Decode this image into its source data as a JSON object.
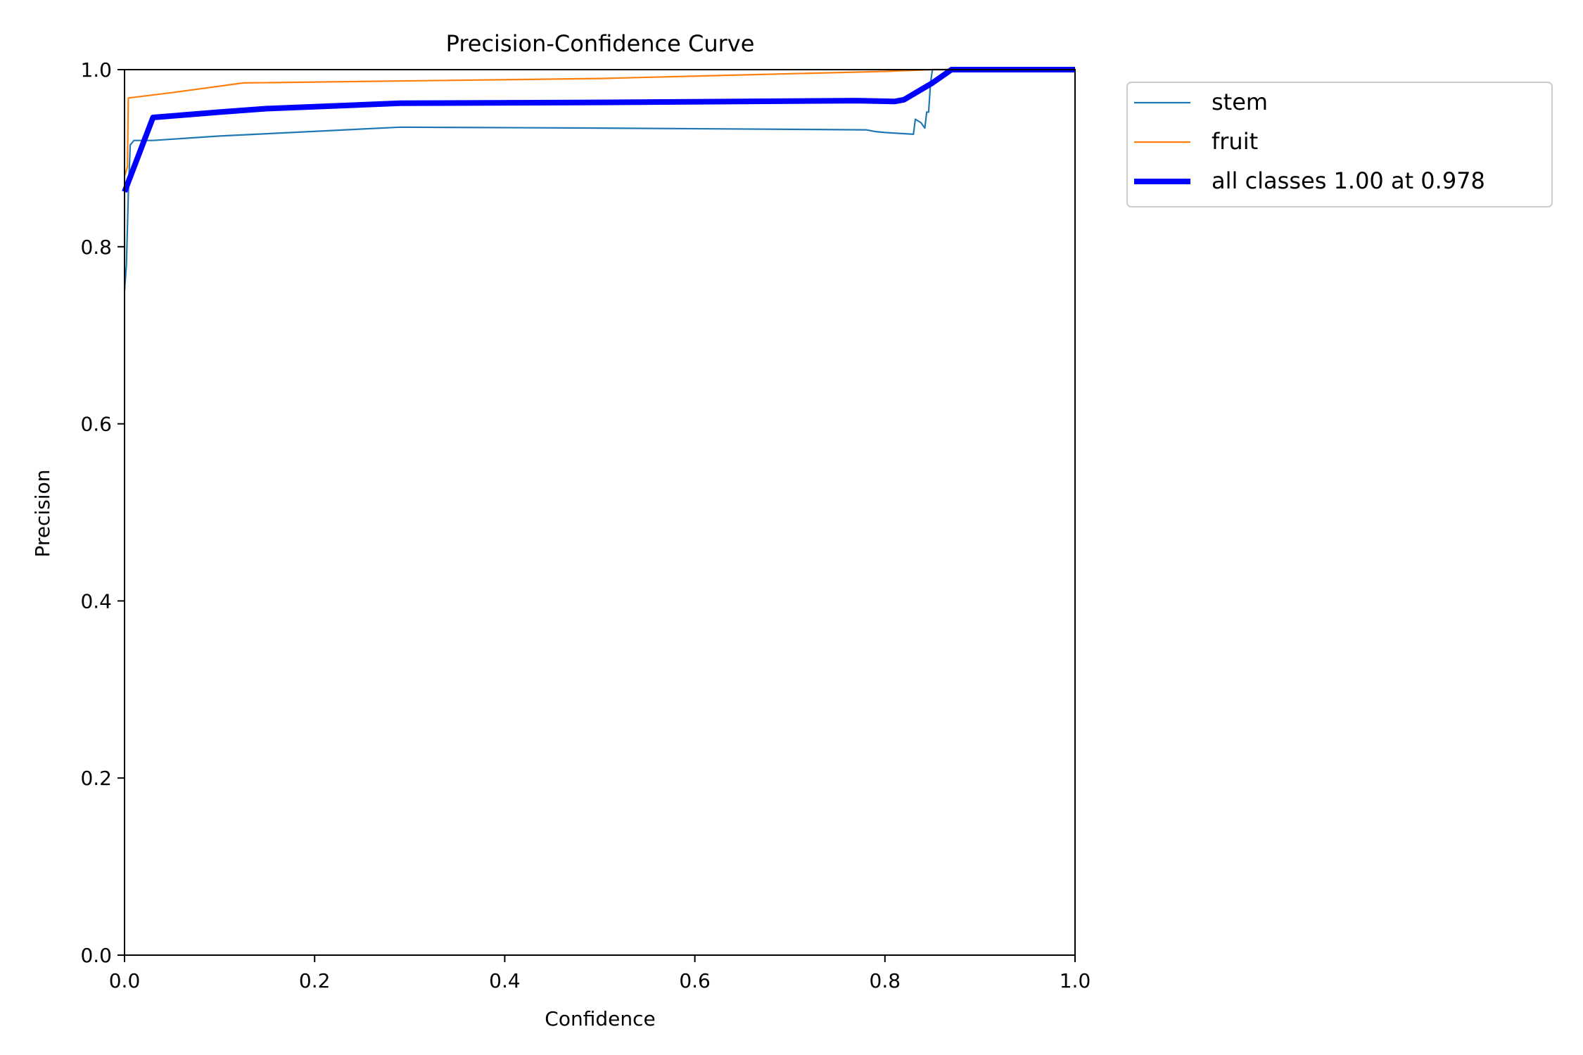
{
  "chart_data": {
    "type": "line",
    "title": "Precision-Confidence Curve",
    "xlabel": "Confidence",
    "ylabel": "Precision",
    "xlim": [
      0,
      1
    ],
    "ylim": [
      0,
      1
    ],
    "xticks": [
      "0.0",
      "0.2",
      "0.4",
      "0.6",
      "0.8",
      "1.0"
    ],
    "yticks": [
      "0.0",
      "0.2",
      "0.4",
      "0.6",
      "0.8",
      "1.0"
    ],
    "grid": false,
    "legend_position": "outside upper right",
    "series": [
      {
        "name": "stem",
        "color": "#1f77b4",
        "line": "thin",
        "points": [
          [
            0.0,
            0.75
          ],
          [
            0.002,
            0.78
          ],
          [
            0.004,
            0.86
          ],
          [
            0.006,
            0.915
          ],
          [
            0.01,
            0.92
          ],
          [
            0.03,
            0.92
          ],
          [
            0.1,
            0.925
          ],
          [
            0.29,
            0.935
          ],
          [
            0.5,
            0.934
          ],
          [
            0.78,
            0.932
          ],
          [
            0.79,
            0.93
          ],
          [
            0.8,
            0.929
          ],
          [
            0.83,
            0.927
          ],
          [
            0.832,
            0.944
          ],
          [
            0.838,
            0.94
          ],
          [
            0.842,
            0.934
          ],
          [
            0.844,
            0.952
          ],
          [
            0.846,
            0.952
          ],
          [
            0.848,
            0.985
          ],
          [
            0.85,
            1.0
          ],
          [
            1.0,
            1.0
          ]
        ]
      },
      {
        "name": "fruit",
        "color": "#ff7f0e",
        "line": "thin",
        "points": [
          [
            0.0,
            0.88
          ],
          [
            0.003,
            0.89
          ],
          [
            0.004,
            0.968
          ],
          [
            0.05,
            0.974
          ],
          [
            0.125,
            0.985
          ],
          [
            0.5,
            0.99
          ],
          [
            0.8,
            0.998
          ],
          [
            0.85,
            1.0
          ],
          [
            1.0,
            1.0
          ]
        ]
      },
      {
        "name": "all classes 1.00 at 0.978",
        "color": "#0000ff",
        "line": "thick",
        "points": [
          [
            0.0,
            0.862
          ],
          [
            0.01,
            0.89
          ],
          [
            0.03,
            0.946
          ],
          [
            0.1,
            0.952
          ],
          [
            0.15,
            0.956
          ],
          [
            0.29,
            0.962
          ],
          [
            0.5,
            0.963
          ],
          [
            0.77,
            0.965
          ],
          [
            0.81,
            0.964
          ],
          [
            0.82,
            0.966
          ],
          [
            0.85,
            0.985
          ],
          [
            0.87,
            1.0
          ],
          [
            1.0,
            1.0
          ]
        ]
      }
    ]
  }
}
